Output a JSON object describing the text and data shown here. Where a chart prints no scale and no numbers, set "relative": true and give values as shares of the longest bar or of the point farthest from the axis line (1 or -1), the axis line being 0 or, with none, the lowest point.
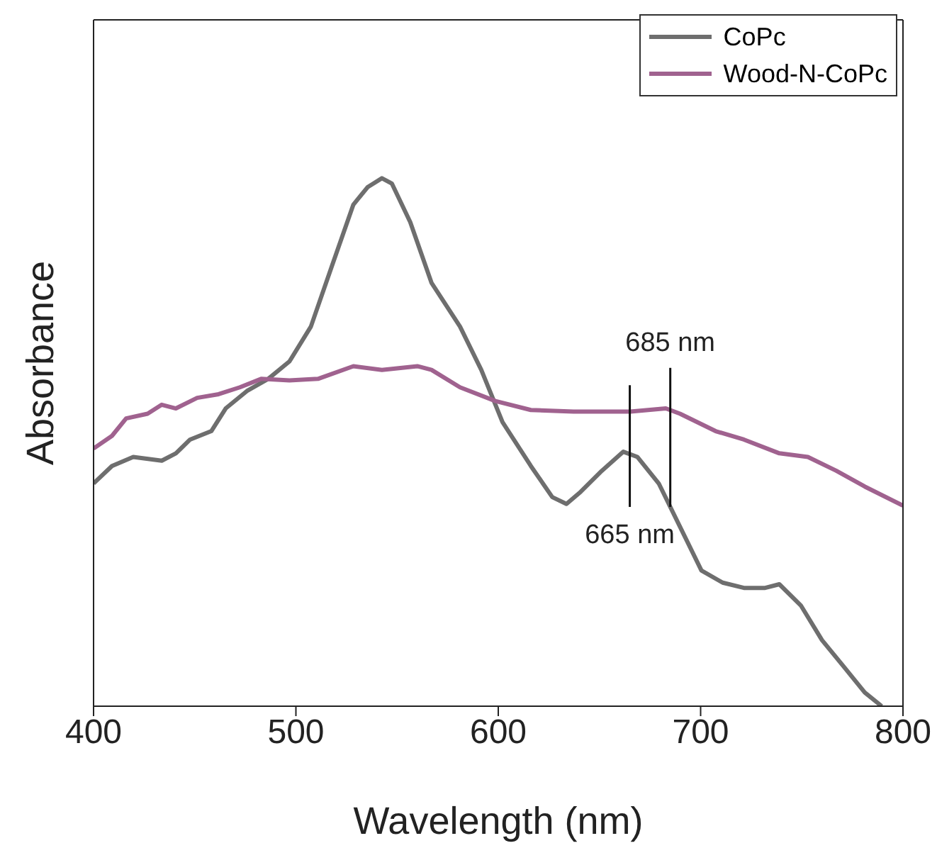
{
  "chart_data": {
    "type": "line",
    "relative": true,
    "xlabel": "Wavelength (nm)",
    "ylabel": "Absorbance",
    "xlim": [
      400,
      800
    ],
    "xticks": [
      400,
      500,
      600,
      700,
      800
    ],
    "legend": "top right",
    "marker": "none",
    "line_style": "solid",
    "grid": false,
    "series": [
      {
        "name": "CoPc",
        "color": "#6e6e6e",
        "x": [
          400,
          409.1,
          419.6,
          433.7,
          440.7,
          447.7,
          458.2,
          465.3,
          475.8,
          486.3,
          496.8,
          507.4,
          517.9,
          528.4,
          535.4,
          542.5,
          547.4,
          556.5,
          567,
          581.1,
          591.6,
          602.1,
          616.1,
          626.7,
          633.7,
          640.7,
          651.2,
          661.8,
          668.8,
          679.3,
          689.8,
          700.4,
          710.9,
          721.4,
          731.9,
          738.9,
          749.5,
          760,
          770.5,
          781.1,
          789.5
        ],
        "values": [
          0.422,
          0.455,
          0.472,
          0.465,
          0.479,
          0.505,
          0.521,
          0.564,
          0.597,
          0.62,
          0.653,
          0.719,
          0.835,
          0.95,
          0.983,
          1,
          0.99,
          0.917,
          0.802,
          0.719,
          0.637,
          0.538,
          0.455,
          0.396,
          0.383,
          0.406,
          0.446,
          0.482,
          0.472,
          0.422,
          0.34,
          0.257,
          0.234,
          0.224,
          0.224,
          0.231,
          0.191,
          0.125,
          0.076,
          0.026,
          0
        ]
      },
      {
        "name": "Wood-N-CoPc",
        "color": "#a0628f",
        "x": [
          400,
          409.1,
          416.1,
          426.7,
          433.7,
          440.7,
          451.2,
          461.8,
          472.3,
          482.8,
          496.8,
          510.9,
          528.4,
          542.5,
          560,
          567,
          581.1,
          598.6,
          616.1,
          637.2,
          665.3,
          682.8,
          689.8,
          707.4,
          721.4,
          738.9,
          753,
          767,
          781.1,
          800
        ],
        "values": [
          0.488,
          0.512,
          0.545,
          0.554,
          0.571,
          0.564,
          0.584,
          0.591,
          0.604,
          0.62,
          0.617,
          0.62,
          0.644,
          0.637,
          0.644,
          0.637,
          0.604,
          0.578,
          0.561,
          0.558,
          0.558,
          0.564,
          0.554,
          0.521,
          0.505,
          0.479,
          0.472,
          0.446,
          0.416,
          0.38
        ]
      }
    ],
    "ref_lines": [
      {
        "axis": "x",
        "value": 685,
        "label": "685 nm",
        "color": "#111111"
      },
      {
        "axis": "x",
        "value": 665,
        "label": "665 nm",
        "color": "#111111"
      }
    ]
  }
}
